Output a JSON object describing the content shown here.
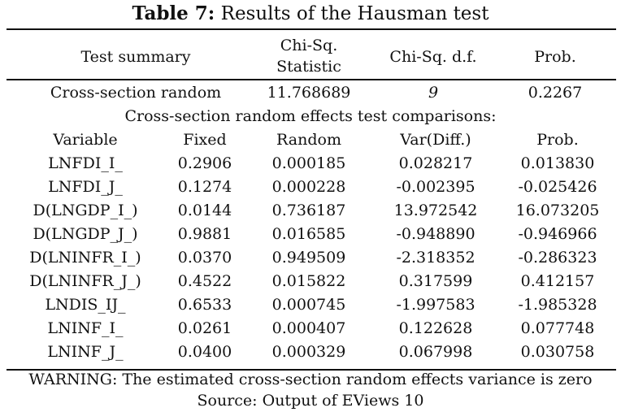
{
  "title": {
    "label": "Table 7:",
    "text": "Results of the Hausman test"
  },
  "summary": {
    "headers": [
      "Test summary",
      "Chi-Sq. Statistic",
      "Chi-Sq. d.f.",
      "Prob."
    ],
    "row": [
      "Cross-section random",
      "11.768689",
      "9",
      "0.2267"
    ]
  },
  "comparisons": {
    "caption": "Cross-section random effects test comparisons:",
    "headers": [
      "Variable",
      "Fixed",
      "Random",
      "Var(Diff.)",
      "Prob."
    ],
    "rows": [
      [
        "LNFDI_I_",
        "0.2906",
        "0.000185",
        "0.028217",
        "0.013830"
      ],
      [
        "LNFDI_J_",
        "0.1274",
        "0.000228",
        "-0.002395",
        "-0.025426"
      ],
      [
        "D(LNGDP_I_)",
        "0.0144",
        "0.736187",
        "13.972542",
        "16.073205"
      ],
      [
        "D(LNGDP_J_)",
        "0.9881",
        "0.016585",
        "-0.948890",
        "-0.946966"
      ],
      [
        "D(LNINFR_I_)",
        "0.0370",
        "0.949509",
        "-2.318352",
        "-0.286323"
      ],
      [
        "D(LNINFR_J_)",
        "0.4522",
        "0.015822",
        "0.317599",
        "0.412157"
      ],
      [
        "LNDIS_IJ_",
        "0.6533",
        "0.000745",
        "-1.997583",
        "-1.985328"
      ],
      [
        "LNINF_I_",
        "0.0261",
        "0.000407",
        "0.122628",
        "0.077748"
      ],
      [
        "LNINF_J_",
        "0.0400",
        "0.000329",
        "0.067998",
        "0.030758"
      ]
    ]
  },
  "footer": {
    "warning": "WARNING: The estimated cross-section random effects variance is zero",
    "source": "Source: Output of EViews 10"
  }
}
